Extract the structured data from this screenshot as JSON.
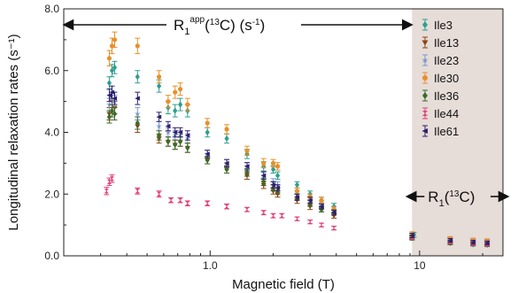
{
  "chart_data": {
    "type": "scatter",
    "xscale": "log",
    "xlim": [
      0.2,
      25
    ],
    "ylim": [
      0,
      8
    ],
    "xlabel": "Magnetic field (T)",
    "ylabel": "Longitudinal relaxation rates (s⁻¹)",
    "xticks": [
      {
        "value": 1,
        "label": "1.0"
      },
      {
        "value": 10,
        "label": "10"
      }
    ],
    "yticks": [
      {
        "value": 0,
        "label": "0.0"
      },
      {
        "value": 2,
        "label": "2.0"
      },
      {
        "value": 4,
        "label": "4.0"
      },
      {
        "value": 6,
        "label": "6.0"
      },
      {
        "value": 8,
        "label": "8.0"
      }
    ],
    "legend_position": "top-right",
    "shaded_region_x": [
      9.2,
      25
    ],
    "shaded_color": "#e6dcd8",
    "annotations": {
      "left": {
        "main": "R",
        "sub": "1",
        "sup": "app",
        "rest": "(",
        "iso": "13",
        "rest2": "C) (s",
        "unit_sup": "-1",
        "close": ")"
      },
      "right": {
        "main": "R",
        "sub": "1",
        "rest": "(",
        "iso": "13",
        "rest2": "C)"
      }
    },
    "series": [
      {
        "name": "Ile3",
        "color": "#2f9e8f",
        "marker": "diamond",
        "points": [
          [
            0.33,
            5.6,
            0.2
          ],
          [
            0.34,
            6.0,
            0.2
          ],
          [
            0.35,
            6.1,
            0.2
          ],
          [
            0.45,
            5.8,
            0.2
          ],
          [
            0.57,
            5.5,
            0.2
          ],
          [
            0.63,
            4.8,
            0.2
          ],
          [
            0.68,
            4.7,
            0.2
          ],
          [
            0.72,
            4.9,
            0.2
          ],
          [
            0.78,
            4.7,
            0.2
          ],
          [
            0.97,
            4.0,
            0.15
          ],
          [
            1.2,
            3.8,
            0.15
          ],
          [
            1.5,
            3.3,
            0.15
          ],
          [
            1.8,
            2.9,
            0.15
          ],
          [
            2.0,
            2.8,
            0.12
          ],
          [
            2.1,
            2.6,
            0.12
          ],
          [
            2.6,
            2.3,
            0.1
          ],
          [
            3.0,
            2.0,
            0.1
          ],
          [
            3.4,
            1.8,
            0.1
          ],
          [
            3.9,
            1.6,
            0.1
          ],
          [
            9.2,
            0.65,
            0.08
          ],
          [
            9.4,
            0.68,
            0.08
          ],
          [
            14,
            0.5,
            0.08
          ],
          [
            18,
            0.48,
            0.07
          ],
          [
            21,
            0.45,
            0.07
          ]
        ]
      },
      {
        "name": "Ile13",
        "color": "#8b4513",
        "marker": "triangle",
        "points": [
          [
            0.33,
            4.6,
            0.2
          ],
          [
            0.34,
            5.0,
            0.2
          ],
          [
            0.35,
            4.8,
            0.2
          ],
          [
            0.45,
            4.2,
            0.2
          ],
          [
            0.57,
            3.8,
            0.15
          ],
          [
            0.63,
            3.7,
            0.15
          ],
          [
            0.68,
            3.6,
            0.15
          ],
          [
            0.72,
            3.7,
            0.15
          ],
          [
            0.78,
            3.5,
            0.15
          ],
          [
            0.97,
            3.1,
            0.12
          ],
          [
            1.2,
            2.8,
            0.12
          ],
          [
            1.5,
            2.6,
            0.12
          ],
          [
            1.8,
            2.3,
            0.12
          ],
          [
            2.0,
            2.1,
            0.1
          ],
          [
            2.1,
            2.0,
            0.1
          ],
          [
            2.6,
            1.8,
            0.1
          ],
          [
            3.0,
            1.6,
            0.1
          ],
          [
            3.4,
            1.5,
            0.08
          ],
          [
            3.9,
            1.3,
            0.08
          ],
          [
            9.2,
            0.6,
            0.07
          ],
          [
            14,
            0.45,
            0.06
          ],
          [
            18,
            0.4,
            0.06
          ],
          [
            21,
            0.38,
            0.06
          ]
        ]
      },
      {
        "name": "Ile23",
        "color": "#7a97c9",
        "marker": "star",
        "points": [
          [
            0.33,
            4.9,
            0.2
          ],
          [
            0.34,
            5.1,
            0.2
          ],
          [
            0.35,
            5.0,
            0.2
          ],
          [
            0.45,
            4.6,
            0.2
          ],
          [
            0.57,
            4.2,
            0.15
          ],
          [
            0.63,
            4.0,
            0.15
          ],
          [
            0.68,
            3.9,
            0.15
          ],
          [
            0.72,
            3.9,
            0.15
          ],
          [
            0.78,
            3.8,
            0.15
          ],
          [
            0.97,
            3.3,
            0.12
          ],
          [
            1.2,
            3.0,
            0.12
          ],
          [
            1.5,
            2.9,
            0.12
          ],
          [
            1.8,
            2.6,
            0.12
          ],
          [
            2.0,
            2.4,
            0.1
          ],
          [
            2.1,
            2.3,
            0.1
          ],
          [
            2.6,
            2.0,
            0.1
          ],
          [
            3.0,
            1.8,
            0.1
          ],
          [
            3.4,
            1.7,
            0.08
          ],
          [
            3.9,
            1.5,
            0.08
          ],
          [
            9.2,
            0.62,
            0.07
          ],
          [
            14,
            0.55,
            0.07
          ],
          [
            18,
            0.5,
            0.06
          ],
          [
            21,
            0.45,
            0.06
          ]
        ]
      },
      {
        "name": "Ile30",
        "color": "#e8902a",
        "marker": "circle",
        "points": [
          [
            0.33,
            6.4,
            0.25
          ],
          [
            0.34,
            6.8,
            0.25
          ],
          [
            0.35,
            7.0,
            0.25
          ],
          [
            0.45,
            6.8,
            0.25
          ],
          [
            0.57,
            5.8,
            0.2
          ],
          [
            0.63,
            5.0,
            0.2
          ],
          [
            0.68,
            5.3,
            0.2
          ],
          [
            0.72,
            5.4,
            0.2
          ],
          [
            0.78,
            4.9,
            0.2
          ],
          [
            0.97,
            4.3,
            0.15
          ],
          [
            1.2,
            4.1,
            0.15
          ],
          [
            1.5,
            3.4,
            0.15
          ],
          [
            1.8,
            3.0,
            0.15
          ],
          [
            2.0,
            3.0,
            0.12
          ],
          [
            2.1,
            2.9,
            0.12
          ],
          [
            2.6,
            2.1,
            0.1
          ],
          [
            3.0,
            1.9,
            0.1
          ],
          [
            3.4,
            1.8,
            0.1
          ],
          [
            3.9,
            1.5,
            0.1
          ],
          [
            9.2,
            0.7,
            0.08
          ],
          [
            14,
            0.55,
            0.07
          ],
          [
            18,
            0.5,
            0.07
          ],
          [
            21,
            0.48,
            0.07
          ]
        ]
      },
      {
        "name": "Ile36",
        "color": "#3a6b2a",
        "marker": "diamond",
        "points": [
          [
            0.33,
            4.5,
            0.2
          ],
          [
            0.34,
            4.7,
            0.2
          ],
          [
            0.35,
            4.6,
            0.2
          ],
          [
            0.45,
            4.3,
            0.2
          ],
          [
            0.57,
            3.9,
            0.15
          ],
          [
            0.63,
            3.7,
            0.15
          ],
          [
            0.68,
            3.6,
            0.15
          ],
          [
            0.72,
            3.7,
            0.15
          ],
          [
            0.78,
            3.5,
            0.15
          ],
          [
            0.97,
            3.1,
            0.12
          ],
          [
            1.2,
            2.8,
            0.12
          ],
          [
            1.5,
            2.7,
            0.12
          ],
          [
            1.8,
            2.4,
            0.12
          ],
          [
            2.0,
            2.2,
            0.1
          ],
          [
            2.1,
            2.1,
            0.1
          ],
          [
            2.6,
            1.9,
            0.1
          ],
          [
            3.0,
            1.7,
            0.1
          ],
          [
            3.4,
            1.5,
            0.08
          ],
          [
            3.9,
            1.4,
            0.08
          ],
          [
            9.2,
            0.58,
            0.07
          ],
          [
            14,
            0.42,
            0.06
          ],
          [
            18,
            0.38,
            0.06
          ],
          [
            21,
            0.36,
            0.06
          ]
        ]
      },
      {
        "name": "Ile44",
        "color": "#e0407a",
        "marker": "hourglass",
        "points": [
          [
            0.32,
            2.1,
            0.12
          ],
          [
            0.33,
            2.4,
            0.12
          ],
          [
            0.34,
            2.5,
            0.12
          ],
          [
            0.45,
            2.1,
            0.1
          ],
          [
            0.57,
            2.0,
            0.1
          ],
          [
            0.65,
            1.8,
            0.08
          ],
          [
            0.72,
            1.8,
            0.08
          ],
          [
            0.78,
            1.7,
            0.08
          ],
          [
            0.97,
            1.7,
            0.08
          ],
          [
            1.2,
            1.6,
            0.08
          ],
          [
            1.5,
            1.5,
            0.07
          ],
          [
            1.8,
            1.4,
            0.07
          ],
          [
            2.0,
            1.3,
            0.07
          ],
          [
            2.2,
            1.3,
            0.07
          ],
          [
            2.6,
            1.2,
            0.06
          ],
          [
            3.0,
            1.1,
            0.06
          ],
          [
            3.4,
            1.0,
            0.06
          ],
          [
            3.9,
            0.9,
            0.06
          ],
          [
            9.2,
            0.6,
            0.06
          ],
          [
            14,
            0.45,
            0.05
          ],
          [
            18,
            0.4,
            0.05
          ],
          [
            21,
            0.38,
            0.05
          ]
        ]
      },
      {
        "name": "Ile61",
        "color": "#2e1f6e",
        "marker": "triangle-left",
        "points": [
          [
            0.33,
            5.2,
            0.2
          ],
          [
            0.34,
            5.3,
            0.2
          ],
          [
            0.35,
            5.1,
            0.2
          ],
          [
            0.45,
            5.1,
            0.2
          ],
          [
            0.57,
            4.5,
            0.15
          ],
          [
            0.63,
            4.2,
            0.15
          ],
          [
            0.68,
            4.0,
            0.15
          ],
          [
            0.72,
            4.0,
            0.15
          ],
          [
            0.78,
            3.9,
            0.15
          ],
          [
            0.97,
            3.3,
            0.12
          ],
          [
            1.2,
            3.0,
            0.12
          ],
          [
            1.5,
            2.9,
            0.12
          ],
          [
            1.8,
            2.6,
            0.12
          ],
          [
            2.0,
            2.3,
            0.1
          ],
          [
            2.1,
            2.2,
            0.1
          ],
          [
            2.6,
            1.9,
            0.1
          ],
          [
            3.0,
            1.8,
            0.1
          ],
          [
            3.4,
            1.6,
            0.08
          ],
          [
            3.9,
            1.4,
            0.08
          ],
          [
            9.2,
            0.66,
            0.07
          ],
          [
            14,
            0.5,
            0.06
          ],
          [
            18,
            0.44,
            0.06
          ],
          [
            21,
            0.42,
            0.06
          ]
        ]
      }
    ]
  }
}
